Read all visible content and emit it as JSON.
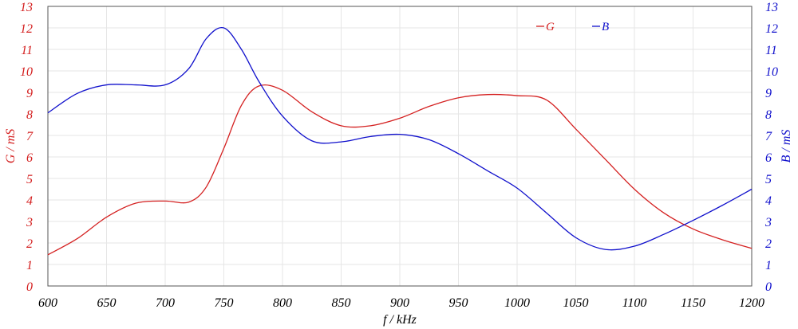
{
  "chart_data": {
    "type": "line",
    "xlabel": "f / kHz",
    "ylabel_left": "G / mS",
    "ylabel_right": "B / mS",
    "xlim": [
      600,
      1200
    ],
    "ylim": [
      0,
      13
    ],
    "x_ticks": [
      600,
      650,
      700,
      750,
      800,
      850,
      900,
      950,
      1000,
      1050,
      1100,
      1150,
      1200
    ],
    "y_ticks": [
      0,
      1,
      2,
      3,
      4,
      5,
      6,
      7,
      8,
      9,
      10,
      11,
      12,
      13
    ],
    "grid": true,
    "legend_position": "top-right",
    "series": [
      {
        "name": "G",
        "color": "#d42020",
        "axis": "left",
        "x": [
          600,
          625,
          650,
          675,
          700,
          720,
          735,
          750,
          765,
          780,
          800,
          825,
          850,
          875,
          900,
          925,
          950,
          975,
          1000,
          1025,
          1050,
          1075,
          1100,
          1125,
          1150,
          1175,
          1200
        ],
        "y": [
          1.45,
          2.2,
          3.2,
          3.85,
          3.95,
          3.9,
          4.6,
          6.4,
          8.4,
          9.3,
          9.1,
          8.1,
          7.45,
          7.45,
          7.8,
          8.35,
          8.75,
          8.9,
          8.85,
          8.65,
          7.3,
          5.9,
          4.5,
          3.4,
          2.65,
          2.15,
          1.75
        ]
      },
      {
        "name": "B",
        "color": "#1010cc",
        "axis": "right",
        "x": [
          600,
          625,
          650,
          675,
          700,
          720,
          735,
          750,
          765,
          780,
          800,
          825,
          850,
          875,
          900,
          925,
          950,
          975,
          1000,
          1025,
          1050,
          1075,
          1100,
          1125,
          1150,
          1175,
          1200
        ],
        "y": [
          8.05,
          8.95,
          9.35,
          9.35,
          9.35,
          10.1,
          11.5,
          12.0,
          11.0,
          9.5,
          7.9,
          6.75,
          6.7,
          6.95,
          7.05,
          6.8,
          6.15,
          5.35,
          4.55,
          3.4,
          2.25,
          1.7,
          1.85,
          2.4,
          3.05,
          3.75,
          4.5
        ]
      }
    ]
  }
}
